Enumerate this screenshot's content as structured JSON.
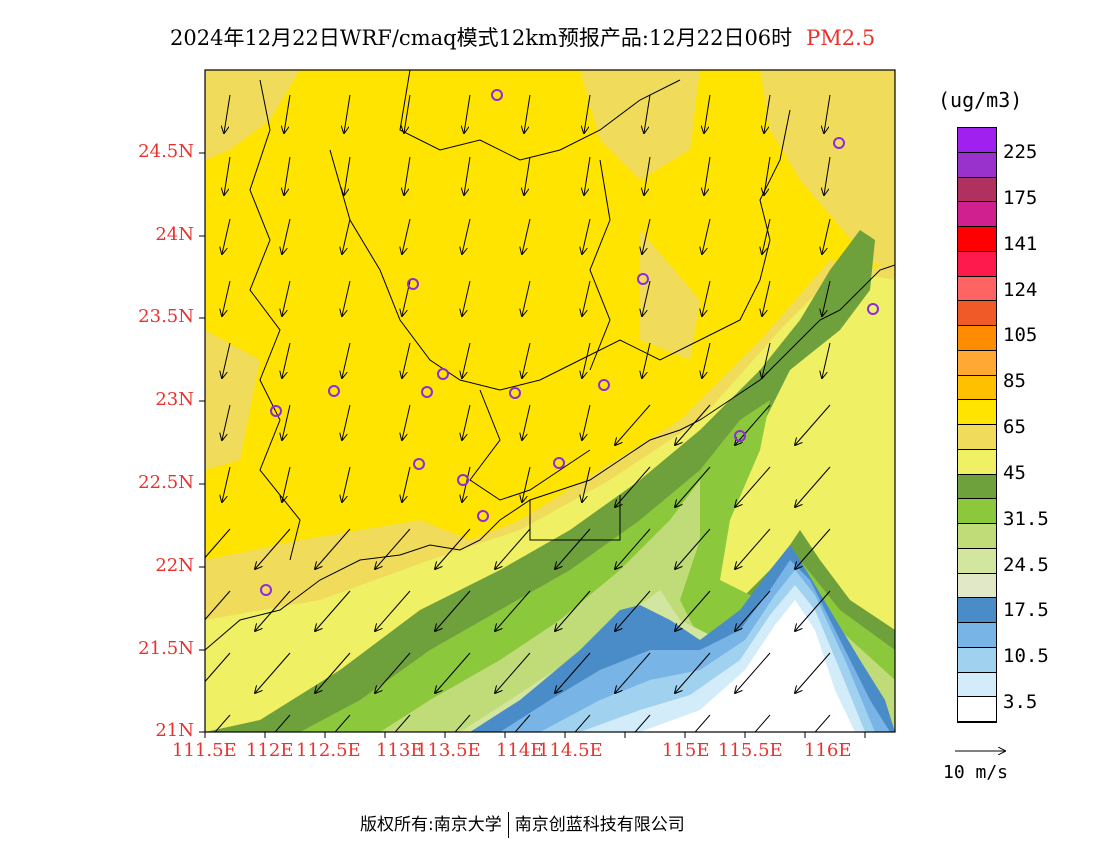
{
  "title": {
    "main": "2024年12月22日WRF/cmaq模式12km预报产品:12月22日06时",
    "pollutant": "PM2.5"
  },
  "axes": {
    "lat_labels": [
      "21N",
      "21.5N",
      "22N",
      "22.5N",
      "23N",
      "23.5N",
      "24N",
      "24.5N"
    ],
    "lon_labels": [
      "111.5E",
      "112E",
      "112.5E",
      "113E",
      "113.5E",
      "114E",
      "114.5E",
      "115E",
      "115.5E",
      "116E"
    ]
  },
  "legend": {
    "units": "(ug/m3)",
    "labels": [
      "225",
      "175",
      "141",
      "124",
      "105",
      "85",
      "65",
      "45",
      "31.5",
      "24.5",
      "17.5",
      "10.5",
      "3.5"
    ],
    "colors": [
      "#a020f0",
      "#9932cc",
      "#b03060",
      "#d02090",
      "#ff0000",
      "#ff1a4d",
      "#ff6464",
      "#f05a28",
      "#ff8c00",
      "#ffa833",
      "#ffc000",
      "#ffe400",
      "#f0dc5a",
      "#f0f064",
      "#6ea03c",
      "#8cc83c",
      "#c0dc78",
      "#d2e6a0",
      "#e0e8c8",
      "#4a8cc8",
      "#78b4e6",
      "#a0d2f0",
      "#d2ecfa",
      "#ffffff"
    ],
    "vector_reference": "10 m/s"
  },
  "footer": {
    "left": "版权所有:南京大学",
    "right": "南京创蓝科技有限公司"
  },
  "stations_count": 17
}
